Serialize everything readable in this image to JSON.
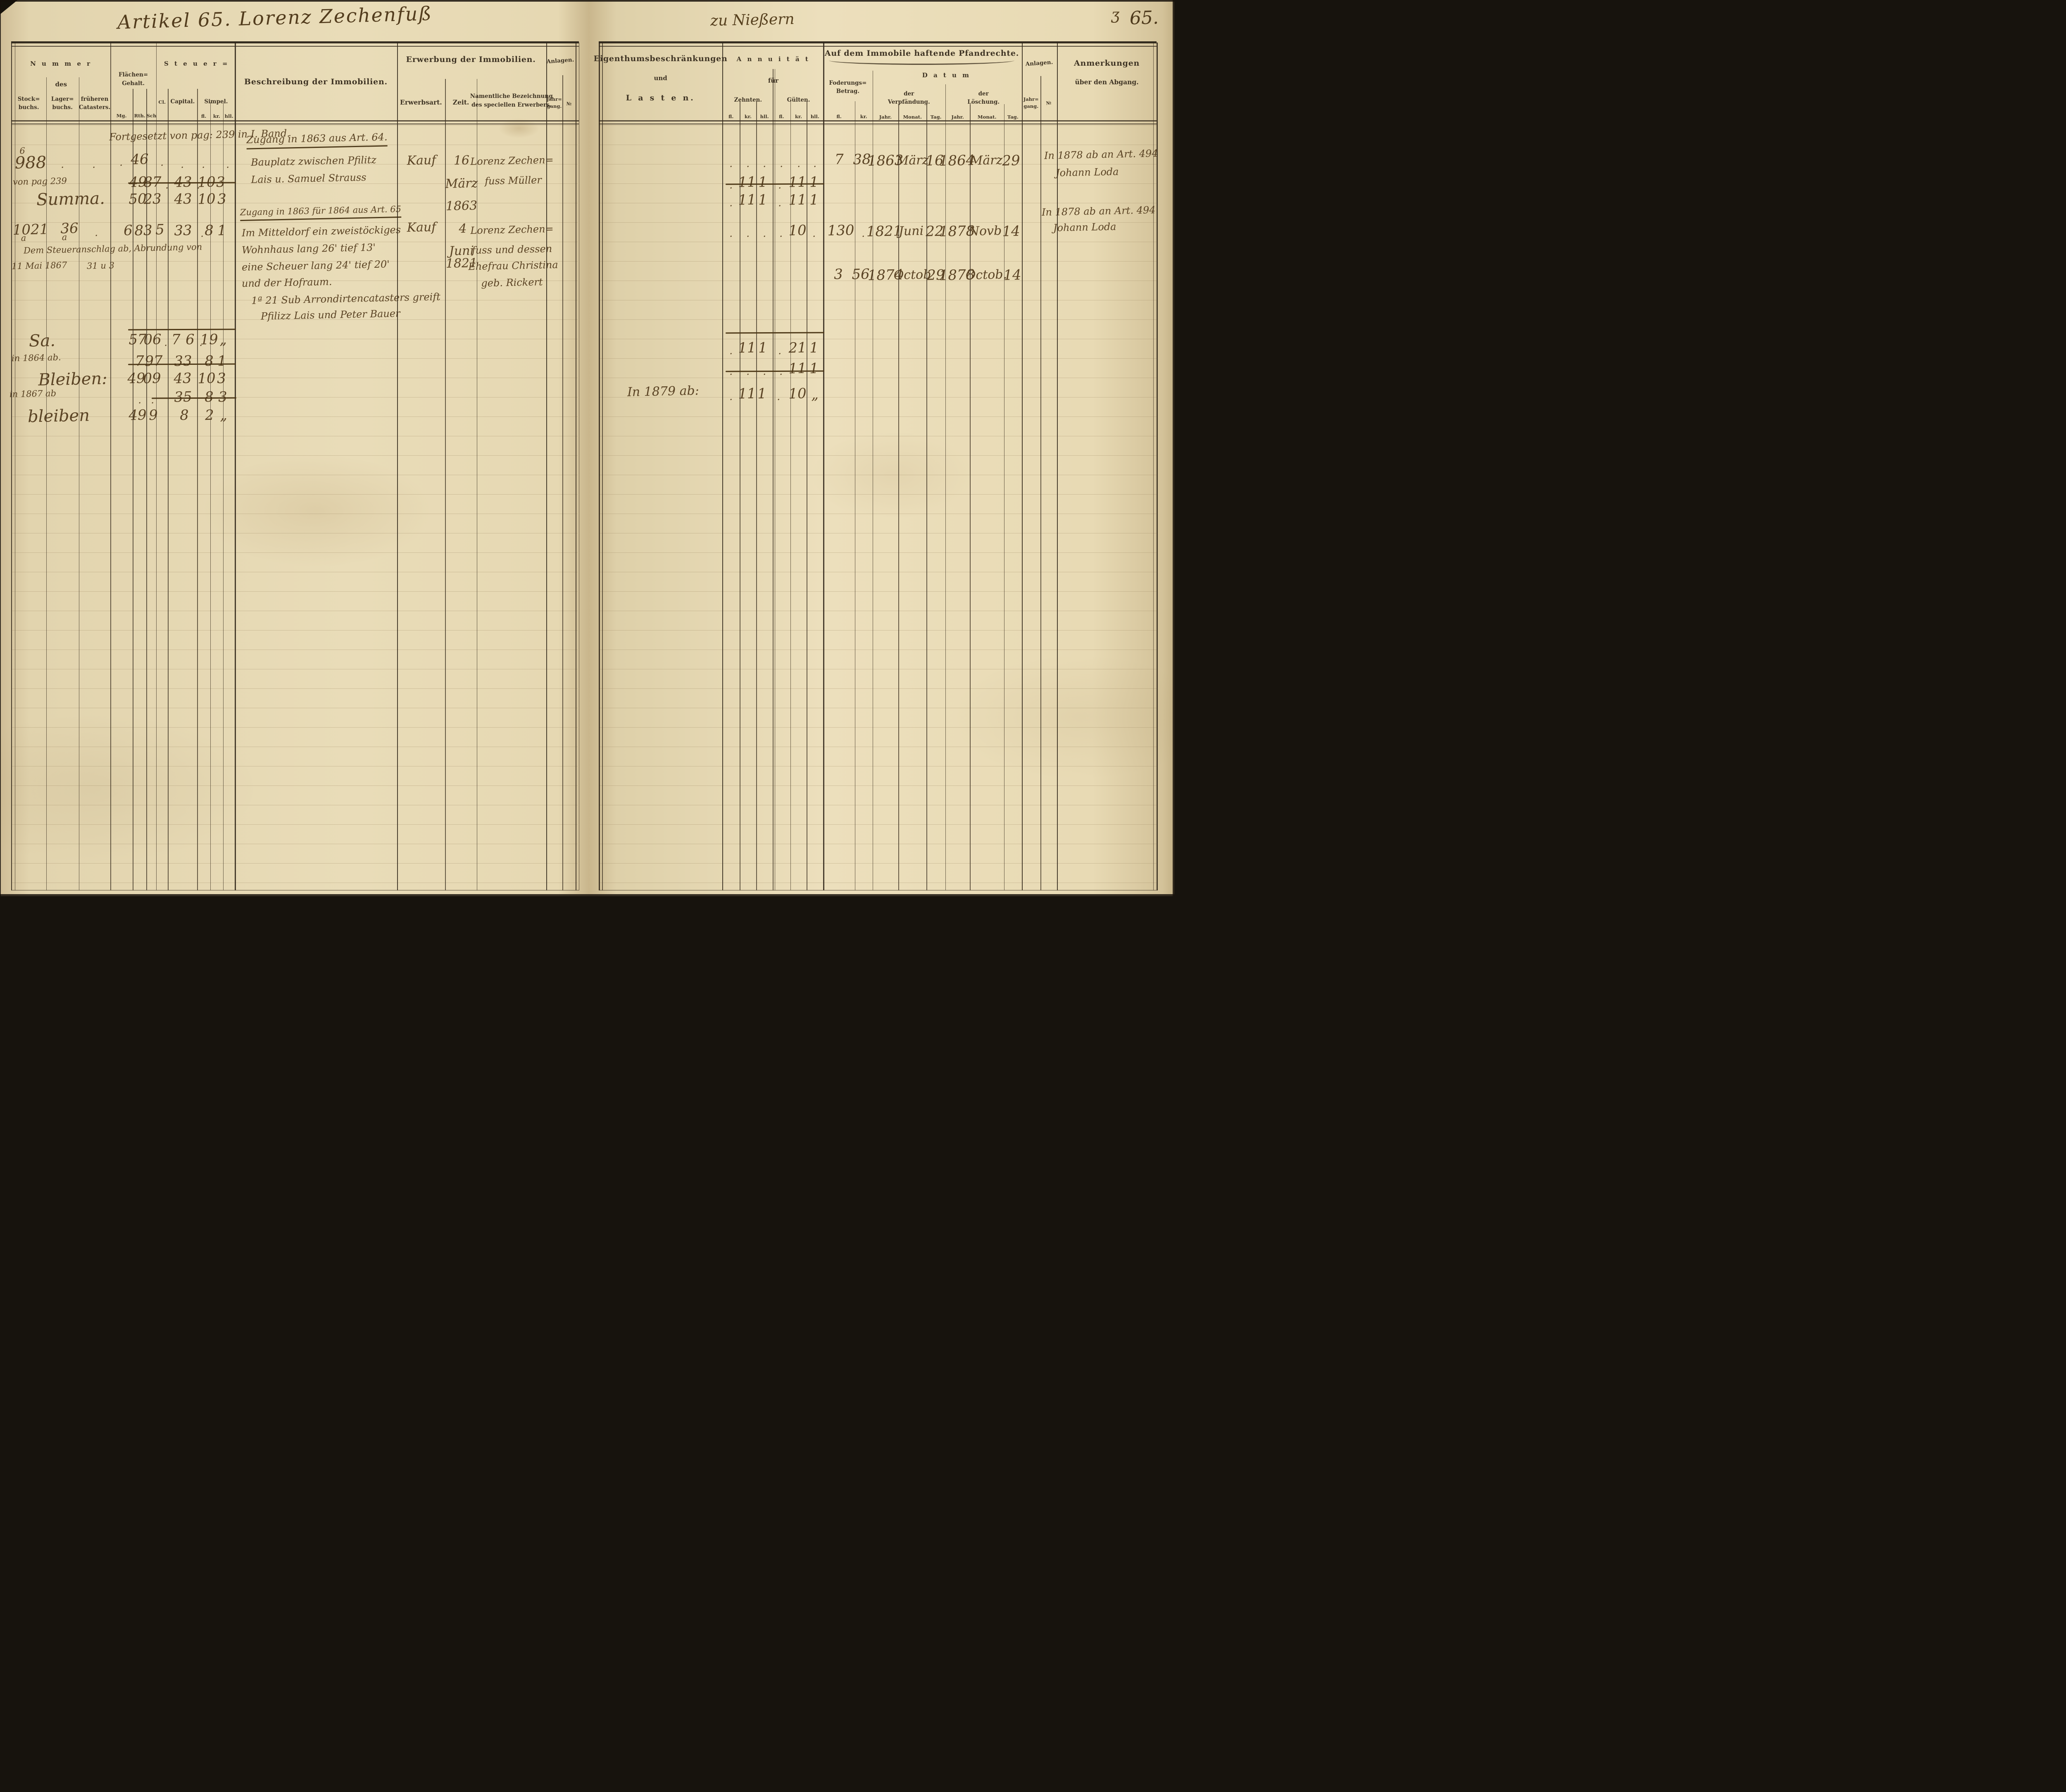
{
  "titles": {
    "article": "Artikel 65. Lorenz Zechenfuß",
    "place": "zu Nießern",
    "page_mark": "ʒ",
    "page_number": "65."
  },
  "marks": {
    "dot": ".",
    "ditto": "„"
  },
  "lh": {
    "nummer": "N u m m e r",
    "des": "des",
    "stockbuchs": "Stock=\nbuchs.",
    "lagerbuchs": "Lager=\nbuchs.",
    "catasters": "früheren\nCatasters.",
    "flaechen": "Flächen=\nGehalt.",
    "mg": "Mg.",
    "rth": "Rth.",
    "sch": "Sch",
    "steuer": "S t e u e r =",
    "cl": "Cl.",
    "capital": "Capital.",
    "simpel": "Simpel.",
    "fl": "fl.",
    "kr": "kr.",
    "hll": "hll.",
    "beschreibung": "Beschreibung der Immobilien.",
    "erwerbung": "Erwerbung der Immobilien.",
    "erwerbsart": "Erwerbsart.",
    "zeit": "Zeit.",
    "namentlich": "Namentliche Bezeichnung\ndes speciellen Erwerbers.",
    "anlagen": "Anlagen.",
    "jahrgang": "Jahr=\ngang.",
    "no": "№"
  },
  "rh": {
    "eigenthum": "Eigenthumsbeschränkungen",
    "und": "und",
    "lasten": "L a s t e n.",
    "annuitaet": "A n n u i t ä t",
    "fuer": "für",
    "zehnten": "Zehnten.",
    "guelten": "Gülten.",
    "fl": "fl.",
    "kr": "kr.",
    "hll": "hll.",
    "pfandrechte": "Auf dem Immobile haftende Pfandrechte.",
    "foderung": "Foderungs=\nBetrag.",
    "datum": "D a t u m",
    "verpfaendung": "der\nVerpfändung.",
    "loeschung": "der\nLöschung.",
    "jahr": "Jahr.",
    "monat": "Monat.",
    "tag": "Tag.",
    "anlagen": "Anlagen.",
    "jahrgang": "Jahr=\ngang.",
    "no": "№",
    "anmerkungen": "Anmerkungen",
    "abgang": "über den Abgang."
  },
  "s1": {
    "continued": "Fortgesetzt von pag: 239 in I. Band.",
    "zugang": "Zugang in 1863 aus Art. 64.",
    "stock_sup": "6",
    "stock": "988",
    "rth": "46",
    "besch1": "Bauplatz zwischen Pfilitz",
    "besch2": "Lais u. Samuel Strauss",
    "erwerbsart": "Kauf",
    "zeit_day": "16",
    "zeit_month": "März",
    "zeit_year": "1863",
    "name1": "Lorenz Zechen=",
    "name2": "fuss Müller",
    "frompag": "von pag 239",
    "r2": {
      "rth": "49",
      "sch": "87",
      "cap": "43",
      "sfl": "10",
      "skr": "3"
    },
    "summa": "Summa.",
    "r3": {
      "rth": "50",
      "sch": "23",
      "cap": "43",
      "sfl": "10",
      "skr": "3"
    }
  },
  "s2": {
    "zugang": "Zugang in 1863 für 1864 aus Art. 65",
    "stock": "1021",
    "stock_sup": "a",
    "lager": "36",
    "lager_sup": "a",
    "f": {
      "rth": "6",
      "sch": "83",
      "cl": "5",
      "cap": "33",
      "sfl": "8",
      "skr": "1"
    },
    "note_ab": "Dem Steueranschlag ab, Abrundung von",
    "note_date": "11 Mai 1867",
    "note_val": "31 u 3",
    "besch": [
      "Im Mitteldorf ein zweistöckiges",
      "Wohnhaus lang 26' tief 13'",
      "eine Scheuer lang 24' tief 20'",
      "und der Hofraum.",
      "1ª 21 Sub Arrondirtencatasters greift",
      "Pfilizz Lais und Peter Bauer"
    ],
    "erwerbsart": "Kauf",
    "zeit_day": "4",
    "zeit_month": "Juni",
    "zeit_year": "1821",
    "name": [
      "Lorenz Zechen=",
      "fuss und dessen",
      "Ehefrau Christina",
      "geb. Rickert"
    ]
  },
  "s3": {
    "sa": {
      "label": "Sa.",
      "rth": "57",
      "sch": "06",
      "cap1": "7",
      "cap2": "6",
      "sfl": "19",
      "skr": "„"
    },
    "ab64": {
      "label": "in 1864 ab.",
      "rth": "7",
      "sch": "97",
      "cap": "33",
      "sfl": "8",
      "skr": "1"
    },
    "bl1": {
      "label": "Bleiben:",
      "rth": "49",
      "sch": "09",
      "cap": "43",
      "sfl": "10",
      "skr": "3"
    },
    "ab67": {
      "label": "in 1867 ab",
      "cap": "35",
      "sfl": "8",
      "skr": "3"
    },
    "bl2": {
      "label": "bleiben",
      "rth": "49",
      "sch": "9",
      "cap": "8",
      "sfl": "2",
      "skr": "„"
    }
  },
  "r1": {
    "p": {
      "fl": "7",
      "kr": "38",
      "vj": "1863",
      "vm": "März",
      "vt": "16",
      "lj": "1864",
      "lm": "März",
      "lt": "29"
    },
    "a2": {
      "zkr": "11",
      "zhll": "1",
      "gkr": "11",
      "ghll": "1"
    },
    "a3": {
      "zkr": "11",
      "zhll": "1",
      "gkr": "11",
      "ghll": "1"
    },
    "anm1": "In 1878 ab an Art. 494",
    "anm2": "Johann Loda"
  },
  "r2": {
    "gkr": "10",
    "p1": {
      "fl": "130",
      "vj": "1821",
      "vm": "Juni",
      "vt": "22",
      "lj": "1878",
      "lm": "Novb",
      "lt": "14"
    },
    "p2": {
      "fl": "3",
      "kr": "56",
      "vj": "1874",
      "vm": "Octob",
      "vt": "29",
      "lj": "1878",
      "lm": "Octob.",
      "lt": "14"
    },
    "anm1": "In 1878 ab an Art. 494",
    "anm2": "Johann Loda"
  },
  "r3": {
    "a1": {
      "zkr": "11",
      "zhll": "1",
      "gkr": "21",
      "ghll": "1"
    },
    "a2": {
      "gkr": "11",
      "ghll": "1"
    },
    "note": "In 1879 ab:",
    "a3": {
      "zkr": "11",
      "zhll": "1",
      "gkr": "10",
      "ghll": "„"
    }
  }
}
